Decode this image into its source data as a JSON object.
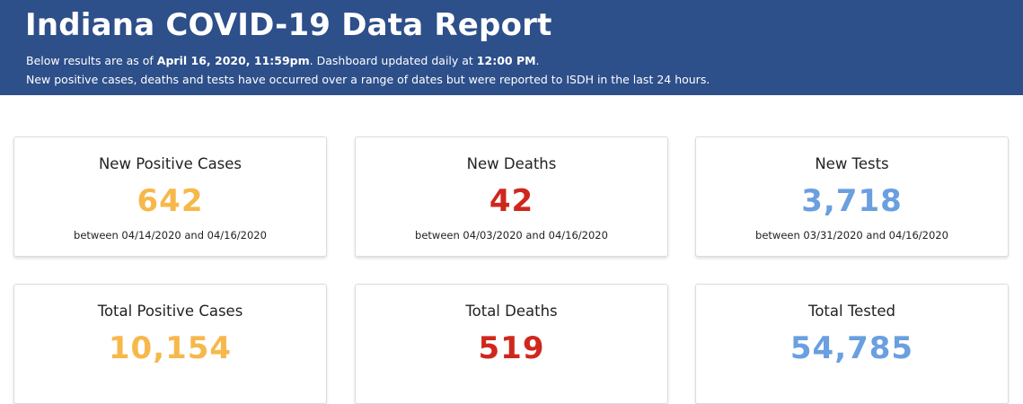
{
  "header": {
    "title": "Indiana COVID-19 Data Report",
    "line1_prefix": "Below results are as of ",
    "line1_date": "April 16, 2020, 11:59pm",
    "line1_middle": ". Dashboard updated daily at ",
    "line1_time": "12:00 PM",
    "line1_suffix": ".",
    "line2": "New positive cases, deaths and tests have occurred over a range of dates but were reported to ISDH in the last 24 hours."
  },
  "colors": {
    "header_bg": "#2d4f8a",
    "cases": "#f7b84b",
    "deaths": "#d0271d",
    "tests": "#6a9fe0"
  },
  "cards": {
    "new_cases": {
      "label": "New Positive Cases",
      "value": "642",
      "range": "between 04/14/2020 and 04/16/2020"
    },
    "new_deaths": {
      "label": "New Deaths",
      "value": "42",
      "range": "between 04/03/2020 and 04/16/2020"
    },
    "new_tests": {
      "label": "New Tests",
      "value": "3,718",
      "range": "between 03/31/2020 and 04/16/2020"
    },
    "total_cases": {
      "label": "Total Positive Cases",
      "value": "10,154"
    },
    "total_deaths": {
      "label": "Total Deaths",
      "value": "519"
    },
    "total_tested": {
      "label": "Total Tested",
      "value": "54,785"
    }
  }
}
